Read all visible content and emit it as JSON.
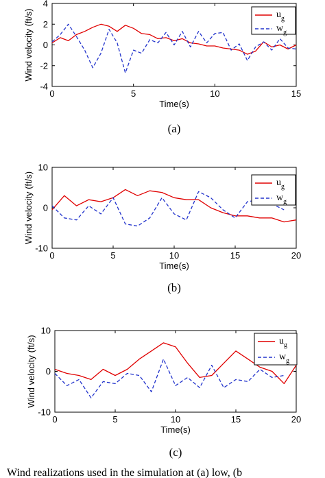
{
  "caption": "Wind realizations used in the simulation at (a) low, (b",
  "chart_data": [
    {
      "type": "line",
      "panel": "(a)",
      "xlabel": "Time(s)",
      "ylabel": "Wind velocity (ft/s)",
      "xlim": [
        0,
        15
      ],
      "ylim": [
        -4,
        4
      ],
      "xticks": [
        "0",
        "5",
        "10",
        "15"
      ],
      "yticks": [
        "-4",
        "-2",
        "0",
        "2",
        "4"
      ],
      "legend_placement": "top-right",
      "legend": [
        {
          "main": "u",
          "sub": "g"
        },
        {
          "main": "w",
          "sub": "g"
        }
      ],
      "series": [
        {
          "name": "ug",
          "color": "#e00000",
          "dash": "solid",
          "x": [
            0,
            0.5,
            1,
            1.5,
            2,
            2.5,
            3,
            3.5,
            4,
            4.5,
            5,
            5.5,
            6,
            6.5,
            7,
            7.5,
            8,
            8.5,
            9,
            9.5,
            10,
            10.5,
            11,
            11.5,
            12,
            12.5,
            13,
            13.5,
            14,
            14.5,
            15
          ],
          "y": [
            0.2,
            0.7,
            0.4,
            1.0,
            1.3,
            1.7,
            2.0,
            1.8,
            1.3,
            1.9,
            1.6,
            1.1,
            1.0,
            0.6,
            0.7,
            0.4,
            0.6,
            0.2,
            0.1,
            -0.1,
            -0.1,
            -0.3,
            -0.4,
            -0.5,
            -0.9,
            -0.6,
            0.3,
            -0.2,
            0.0,
            -0.4,
            0.0
          ]
        },
        {
          "name": "wg",
          "color": "#2233cc",
          "dash": "dashed",
          "x": [
            0,
            0.5,
            1,
            1.5,
            2,
            2.5,
            3,
            3.5,
            4,
            4.5,
            5,
            5.5,
            6,
            6.5,
            7,
            7.5,
            8,
            8.5,
            9,
            9.5,
            10,
            10.5,
            11,
            11.5,
            12,
            12.5,
            13,
            13.5,
            14,
            14.5,
            15
          ],
          "y": [
            0.3,
            1.0,
            2.0,
            0.8,
            -0.5,
            -2.2,
            -0.8,
            1.5,
            0.2,
            -2.7,
            -0.5,
            -0.8,
            0.5,
            0.2,
            1.2,
            0.0,
            1.3,
            -0.2,
            1.3,
            0.2,
            1.1,
            1.2,
            -0.5,
            0.1,
            -1.5,
            -0.2,
            0.3,
            -0.5,
            0.6,
            -0.3,
            -0.4
          ]
        }
      ]
    },
    {
      "type": "line",
      "panel": "(b)",
      "xlabel": "Time(s)",
      "ylabel": "Wind velocity (ft/s)",
      "xlim": [
        0,
        20
      ],
      "ylim": [
        -10,
        10
      ],
      "xticks": [
        "0",
        "5",
        "10",
        "15",
        "20"
      ],
      "yticks": [
        "-10",
        "0",
        "10"
      ],
      "legend_placement": "top-right",
      "legend": [
        {
          "main": "u",
          "sub": "g"
        },
        {
          "main": "w",
          "sub": "g"
        }
      ],
      "series": [
        {
          "name": "ug",
          "color": "#e00000",
          "dash": "solid",
          "x": [
            0,
            1,
            2,
            3,
            4,
            5,
            6,
            7,
            8,
            9,
            10,
            11,
            12,
            13,
            14,
            15,
            16,
            17,
            18,
            19,
            20
          ],
          "y": [
            -0.5,
            3.0,
            0.5,
            2.0,
            1.5,
            2.5,
            4.5,
            3.0,
            4.2,
            3.8,
            2.5,
            2.0,
            2.0,
            0.0,
            -1.2,
            -2.0,
            -2.0,
            -2.5,
            -2.5,
            -3.5,
            -3.0
          ]
        },
        {
          "name": "wg",
          "color": "#2233cc",
          "dash": "dashed",
          "x": [
            0,
            1,
            2,
            3,
            4,
            5,
            6,
            7,
            8,
            9,
            10,
            11,
            12,
            13,
            14,
            15,
            16,
            17,
            18,
            19
          ],
          "y": [
            0.5,
            -2.5,
            -3.0,
            0.5,
            -1.5,
            2.5,
            -4.0,
            -4.5,
            -2.5,
            2.5,
            -1.5,
            -3.0,
            4.0,
            2.5,
            -0.5,
            -2.5,
            1.5,
            2.0,
            1.0,
            -0.5
          ]
        }
      ]
    },
    {
      "type": "line",
      "panel": "(c)",
      "xlabel": "Time(s)",
      "ylabel": "Wind velocity (ft/s)",
      "xlim": [
        0,
        20
      ],
      "ylim": [
        -10,
        10
      ],
      "xticks": [
        "0",
        "5",
        "10",
        "15",
        "20"
      ],
      "yticks": [
        "-10",
        "0",
        "10"
      ],
      "legend_placement": "top-right",
      "legend": [
        {
          "main": "u",
          "sub": "g"
        },
        {
          "main": "w",
          "sub": "g"
        }
      ],
      "series": [
        {
          "name": "ug",
          "color": "#e00000",
          "dash": "solid",
          "x": [
            0,
            1,
            2,
            3,
            4,
            5,
            6,
            7,
            8,
            9,
            10,
            11,
            12,
            13,
            14,
            15,
            16,
            17,
            18,
            19,
            20
          ],
          "y": [
            0.5,
            -0.5,
            -1.0,
            -2.0,
            0.5,
            -1.0,
            0.5,
            3.0,
            5.0,
            7.0,
            6.0,
            2.0,
            -1.5,
            -1.0,
            2.0,
            5.0,
            3.0,
            1.0,
            0.0,
            -3.0,
            1.5
          ]
        },
        {
          "name": "wg",
          "color": "#2233cc",
          "dash": "dashed",
          "x": [
            0,
            1,
            2,
            3,
            4,
            5,
            6,
            7,
            8,
            9,
            10,
            11,
            12,
            13,
            14,
            15,
            16,
            17,
            18,
            19
          ],
          "y": [
            -0.5,
            -3.5,
            -2.0,
            -6.5,
            -2.5,
            -3.0,
            -0.5,
            -1.0,
            -5.0,
            3.0,
            -3.5,
            -1.5,
            -4.0,
            1.5,
            -4.0,
            -2.0,
            -2.5,
            0.5,
            -1.5,
            -1.0
          ]
        }
      ]
    }
  ]
}
